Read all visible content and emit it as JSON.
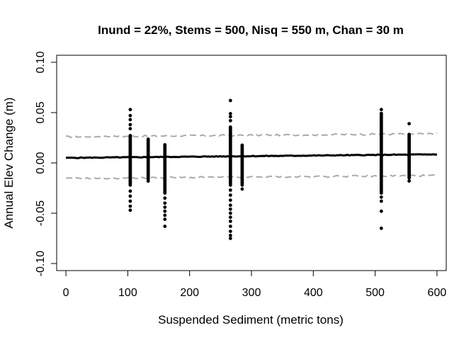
{
  "chart_data": {
    "type": "scatter",
    "title": "Inund = 22%, Stems = 500, Nisq = 550 m, Chan = 30 m",
    "xlabel": "Suspended Sediment (metric tons)",
    "ylabel": "Annual Elev Change (m)",
    "xlim": [
      -15,
      615
    ],
    "ylim": [
      -0.107,
      0.107
    ],
    "xticks": [
      0,
      100,
      200,
      300,
      400,
      500,
      600
    ],
    "xtick_labels": [
      "0",
      "100",
      "200",
      "300",
      "400",
      "500",
      "600"
    ],
    "yticks": [
      -0.1,
      -0.05,
      0.0,
      0.05,
      0.1
    ],
    "ytick_labels": [
      "-0.10",
      "-0.05",
      "0.00",
      "0.05",
      "0.10"
    ],
    "grid": false,
    "colors": {
      "points": "#000000",
      "fit": "#000000",
      "band": "#aaaaaa"
    },
    "point_groups": [
      {
        "x": 104,
        "dense_min": -0.022,
        "dense_max": 0.028,
        "outliers": [
          0.053,
          0.047,
          0.043,
          0.038,
          0.034,
          -0.028,
          -0.033,
          -0.038,
          -0.043,
          -0.047
        ]
      },
      {
        "x": 133,
        "dense_min": -0.016,
        "dense_max": 0.024,
        "outliers": [
          -0.018
        ]
      },
      {
        "x": 160,
        "dense_min": -0.03,
        "dense_max": 0.018,
        "outliers": [
          -0.035,
          -0.04,
          -0.044,
          -0.048,
          -0.052,
          -0.056,
          -0.063
        ]
      },
      {
        "x": 266,
        "dense_min": -0.022,
        "dense_max": 0.036,
        "outliers": [
          0.062,
          0.049,
          0.046,
          0.042,
          -0.027,
          -0.032,
          -0.037,
          -0.042,
          -0.046,
          -0.05,
          -0.054,
          -0.058,
          -0.063,
          -0.068,
          -0.072,
          -0.075
        ]
      },
      {
        "x": 285,
        "dense_min": -0.022,
        "dense_max": 0.018,
        "outliers": [
          -0.026
        ]
      },
      {
        "x": 510,
        "dense_min": -0.03,
        "dense_max": 0.05,
        "outliers": [
          0.053,
          -0.034,
          -0.038,
          -0.048,
          -0.065
        ]
      },
      {
        "x": 555,
        "dense_min": -0.015,
        "dense_max": 0.029,
        "outliers": [
          0.039,
          -0.018
        ]
      }
    ],
    "fit_line": {
      "x": [
        0,
        600
      ],
      "y": [
        0.005,
        0.0085
      ]
    },
    "upper_band": {
      "x": [
        0,
        600
      ],
      "y": [
        0.026,
        0.029
      ]
    },
    "lower_band": {
      "x": [
        0,
        600
      ],
      "y": [
        -0.0155,
        -0.0125
      ]
    }
  }
}
